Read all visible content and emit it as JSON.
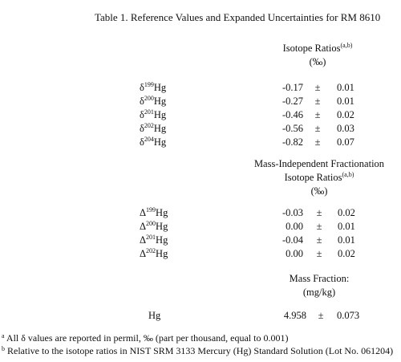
{
  "title": "Table 1.  Reference Values and Expanded Uncertainties for RM 8610",
  "section1": {
    "header_line1": "Isotope Ratios",
    "header_sup": "(a,b)",
    "header_unit": "(‰)",
    "rows": [
      {
        "symbol": "δ",
        "mass": "199",
        "element": "Hg",
        "value": "-0.17",
        "pm": "±",
        "uncertainty": "0.01"
      },
      {
        "symbol": "δ",
        "mass": "200",
        "element": "Hg",
        "value": "-0.27",
        "pm": "±",
        "uncertainty": "0.01"
      },
      {
        "symbol": "δ",
        "mass": "201",
        "element": "Hg",
        "value": "-0.46",
        "pm": "±",
        "uncertainty": "0.02"
      },
      {
        "symbol": "δ",
        "mass": "202",
        "element": "Hg",
        "value": "-0.56",
        "pm": "±",
        "uncertainty": "0.03"
      },
      {
        "symbol": "δ",
        "mass": "204",
        "element": "Hg",
        "value": "-0.82",
        "pm": "±",
        "uncertainty": "0.07"
      }
    ]
  },
  "section2": {
    "header_line1": "Mass-Independent Fractionation",
    "header_line2": "Isotope Ratios",
    "header_sup": "(a,b)",
    "header_unit": "(‰)",
    "rows": [
      {
        "symbol": "Δ",
        "mass": "199",
        "element": "Hg",
        "value": "-0.03",
        "pm": "±",
        "uncertainty": "0.02"
      },
      {
        "symbol": "Δ",
        "mass": "200",
        "element": "Hg",
        "value": "0.00",
        "pm": "±",
        "uncertainty": "0.01"
      },
      {
        "symbol": "Δ",
        "mass": "201",
        "element": "Hg",
        "value": "-0.04",
        "pm": "±",
        "uncertainty": "0.01"
      },
      {
        "symbol": "Δ",
        "mass": "202",
        "element": "Hg",
        "value": "0.00",
        "pm": "±",
        "uncertainty": "0.02"
      }
    ]
  },
  "section3": {
    "header_line1": "Mass Fraction:",
    "header_unit": "(mg/kg)",
    "row": {
      "label": "Hg",
      "value": "4.958",
      "pm": "±",
      "uncertainty": "0.073"
    }
  },
  "footnotes": [
    {
      "mark": "a",
      "text": "All δ values are reported in permil, ‰ (part per thousand, equal to 0.001)"
    },
    {
      "mark": "b",
      "text": "Relative to the isotope ratios in NIST SRM 3133 Mercury (Hg) Standard Solution (Lot No. 061204)"
    }
  ]
}
